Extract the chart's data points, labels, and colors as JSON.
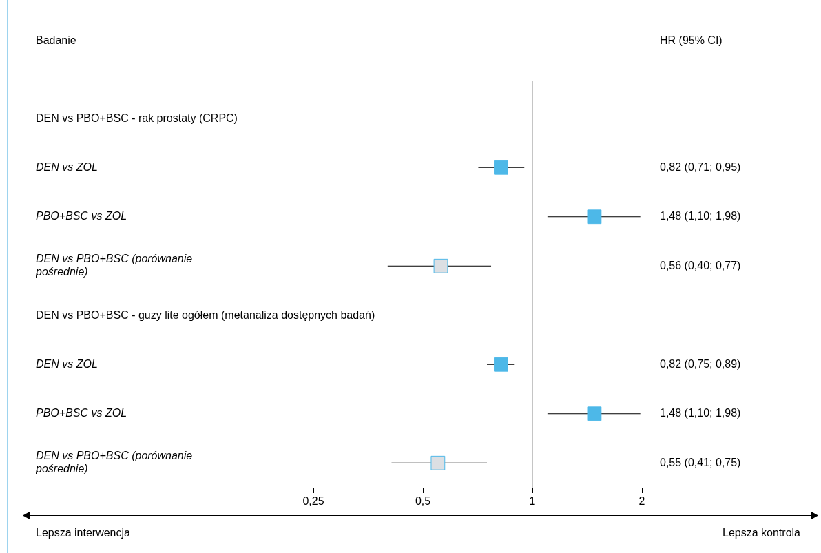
{
  "chart_data": {
    "type": "scatter",
    "orientation": "horizontal",
    "log": "x",
    "grid": false,
    "legend": false,
    "marker": "square",
    "categories": [
      "DEN vs PBO+BSC - rak prostaty (CRPC)",
      "DEN vs ZOL",
      "PBO+BSC vs ZOL",
      "DEN vs PBO+BSC (porównanie pośrednie)",
      "DEN vs PBO+BSC - guzy lite ogółem (metanaliza dostępnych badań)",
      "DEN vs ZOL",
      "PBO+BSC vs ZOL",
      "DEN vs PBO+BSC (porównanie pośrednie)"
    ],
    "values": [
      null,
      0.82,
      1.48,
      0.56,
      null,
      0.82,
      1.48,
      0.55
    ],
    "errors": [
      null,
      [
        0.71,
        0.95
      ],
      [
        1.1,
        1.98
      ],
      [
        0.4,
        0.77
      ],
      null,
      [
        0.75,
        0.89
      ],
      [
        1.1,
        1.98
      ],
      [
        0.41,
        0.75
      ]
    ],
    "value_labels": [
      null,
      "0,82 (0,71; 0,95)",
      "1,48 (1,10; 1,98)",
      "0,56 (0,40; 0,77)",
      null,
      "0,82 (0,75; 0,89)",
      "1,48 (1,10; 1,98)",
      "0,55 (0,41; 0,75)"
    ],
    "color": "#4db8e8",
    "colors": [
      null,
      "#4db8e8",
      "#4db8e8",
      "#dcdfe3",
      null,
      "#4db8e8",
      "#4db8e8",
      "#dcdfe3"
    ],
    "xlim": [
      0.25,
      2
    ],
    "xticks": [
      {
        "value": 0.25,
        "label": "0,25"
      },
      {
        "value": 0.5,
        "label": "0,5"
      },
      1,
      2
    ],
    "ref_lines": [
      {
        "axis": "x",
        "value": 1,
        "color": "#a6a6a6"
      }
    ],
    "annotations": [
      "Badanie",
      "HR (95% CI)",
      "Lepsza interwencja",
      "Lepsza kontrola"
    ]
  }
}
